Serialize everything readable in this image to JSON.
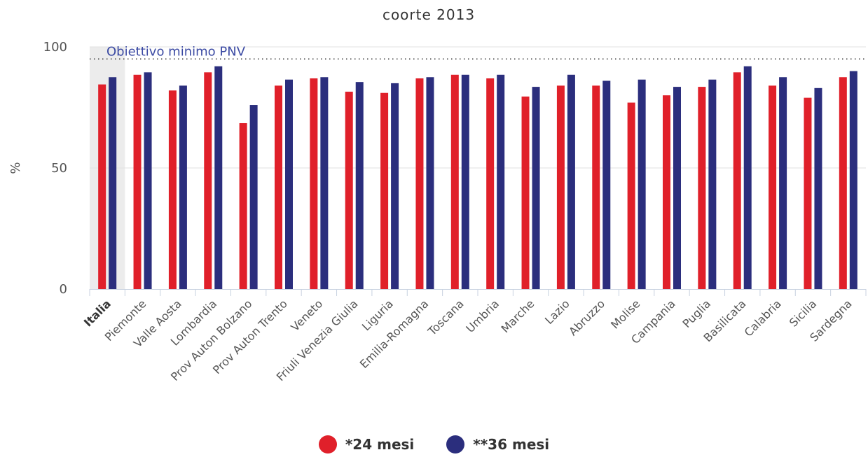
{
  "chart_data": {
    "type": "bar",
    "title": "coorte 2013",
    "xlabel": "",
    "ylabel": "%",
    "ylim": [
      0,
      100
    ],
    "yticks": [
      "0",
      "50",
      "100"
    ],
    "grid": true,
    "legend_position": "bottom-center",
    "highlighted_category": "Italia",
    "reference_line": {
      "label": "Obiettivo minimo PNV",
      "value": 95
    },
    "categories": [
      "Italia",
      "Piemonte",
      "Valle Aosta",
      "Lombardia",
      "Prov Auton Bolzano",
      "Prov Auton Trento",
      "Veneto",
      "Friuli Venezia Giulia",
      "Liguria",
      "Emilia-Romagna",
      "Toscana",
      "Umbria",
      "Marche",
      "Lazio",
      "Abruzzo",
      "Molise",
      "Campania",
      "Puglia",
      "Basilicata",
      "Calabria",
      "Sicilia",
      "Sardegna"
    ],
    "series": [
      {
        "name": "*24 mesi",
        "color": "#e0202a",
        "values": [
          84.5,
          88.5,
          82,
          89.5,
          68.5,
          84,
          87,
          81.5,
          81,
          87,
          88.5,
          87,
          79.5,
          84,
          84,
          77,
          80,
          83.5,
          89.5,
          84,
          79,
          87.5
        ]
      },
      {
        "name": "**36 mesi",
        "color": "#2b2e7d",
        "values": [
          87.5,
          89.5,
          84,
          92,
          76,
          86.5,
          87.5,
          85.5,
          85,
          87.5,
          88.5,
          88.5,
          83.5,
          88.5,
          86,
          86.5,
          83.5,
          86.5,
          92,
          87.5,
          83,
          90
        ]
      }
    ]
  }
}
